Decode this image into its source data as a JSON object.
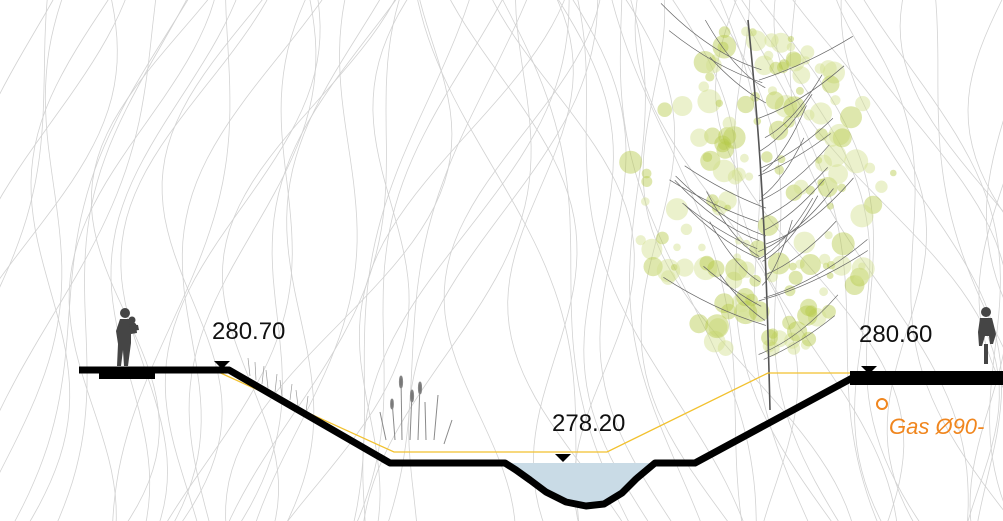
{
  "section": {
    "elevations": {
      "left_top": "280.70",
      "right_top": "280.60",
      "water_level": "278.20"
    },
    "utility": {
      "label": "Gas Ø90-",
      "color": "#f0861e"
    },
    "colors": {
      "ground": "#000000",
      "excavation_line": "#f2c12e",
      "water": "#c9dbe6",
      "contours": "#cfcfcf",
      "foliage": "#b5c94a",
      "figures": "#444444"
    },
    "icons": [
      "person-carrying-child-icon",
      "cyclist-icon",
      "elevation-marker-icon",
      "tree-icon",
      "reeds-icon",
      "gas-pipe-icon"
    ]
  }
}
